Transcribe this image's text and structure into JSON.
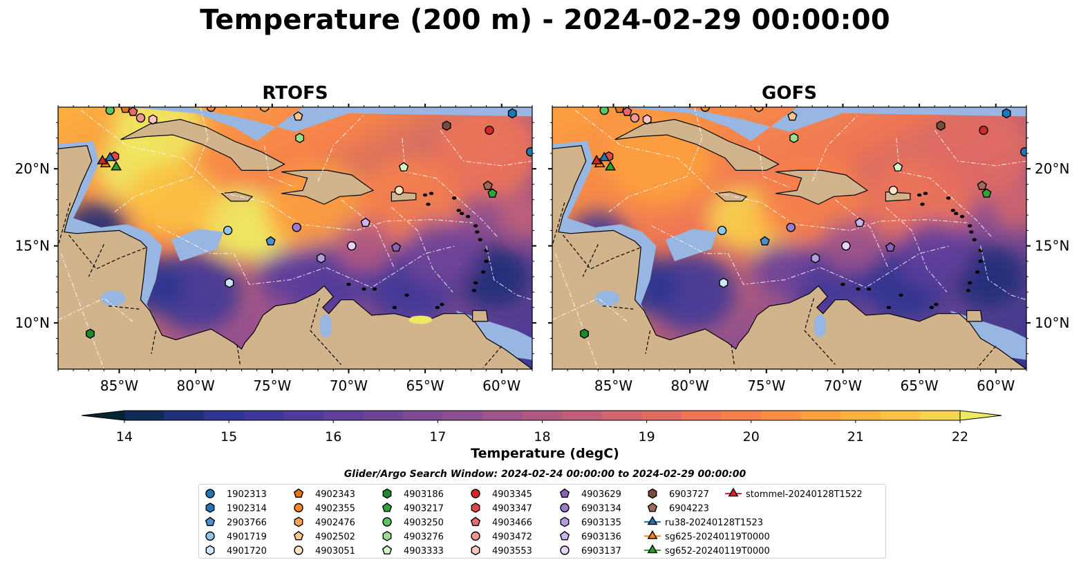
{
  "title": "Temperature (200 m) - 2024-02-29 00:00:00",
  "panels": [
    {
      "name": "RTOFS"
    },
    {
      "name": "GOFS"
    }
  ],
  "axes": {
    "lon_ticks": [
      "85°W",
      "80°W",
      "75°W",
      "70°W",
      "65°W",
      "60°W"
    ],
    "lat_ticks": [
      "10°N",
      "15°N",
      "20°N"
    ],
    "lon_range": [
      -89,
      -58
    ],
    "lat_range": [
      7,
      24
    ]
  },
  "colorbar": {
    "label": "Temperature (degC)",
    "ticks": [
      "14",
      "15",
      "16",
      "17",
      "18",
      "19",
      "20",
      "21",
      "22"
    ],
    "range": [
      14,
      22
    ],
    "colors": [
      "#042333",
      "#0f2b55",
      "#1f2f78",
      "#2e3490",
      "#3e3798",
      "#4e3b9b",
      "#5e3f9b",
      "#6e4499",
      "#7e4a96",
      "#8e4f92",
      "#9f548b",
      "#b05a82",
      "#c15f79",
      "#d2656e",
      "#e16c62",
      "#ee7556",
      "#f6814b",
      "#fb9043",
      "#fda03e",
      "#fdb13e",
      "#fbc244",
      "#f6d552",
      "#efe862"
    ]
  },
  "search_window": "Glider/Argo Search Window: 2024-02-24 00:00:00 to 2024-02-29 00:00:00",
  "legend": [
    {
      "label": "1902313",
      "marker": "circle",
      "color": "#1f77b4"
    },
    {
      "label": "1902314",
      "marker": "hexagon",
      "color": "#1f77b4"
    },
    {
      "label": "2903766",
      "marker": "pentagon",
      "color": "#4c8fcf"
    },
    {
      "label": "4901719",
      "marker": "circle",
      "color": "#8fc6ea"
    },
    {
      "label": "4901720",
      "marker": "hexagon",
      "color": "#cde7f7"
    },
    {
      "label": "4902343",
      "marker": "pentagon",
      "color": "#e6750d"
    },
    {
      "label": "4902355",
      "marker": "circle",
      "color": "#f5892a"
    },
    {
      "label": "4902476",
      "marker": "hexagon",
      "color": "#fba352"
    },
    {
      "label": "4902502",
      "marker": "pentagon",
      "color": "#fdc58b"
    },
    {
      "label": "4903051",
      "marker": "circle",
      "color": "#fde2c4"
    },
    {
      "label": "4903186",
      "marker": "hexagon",
      "color": "#1a8a2a"
    },
    {
      "label": "4903217",
      "marker": "pentagon",
      "color": "#2fa33c"
    },
    {
      "label": "4903250",
      "marker": "circle",
      "color": "#5cc65e"
    },
    {
      "label": "4903276",
      "marker": "hexagon",
      "color": "#98e08e"
    },
    {
      "label": "4903333",
      "marker": "pentagon",
      "color": "#d3f5c6"
    },
    {
      "label": "4903345",
      "marker": "circle",
      "color": "#d62728"
    },
    {
      "label": "4903347",
      "marker": "hexagon",
      "color": "#e0474a"
    },
    {
      "label": "4903466",
      "marker": "pentagon",
      "color": "#ea6a70"
    },
    {
      "label": "4903472",
      "marker": "circle",
      "color": "#f39794"
    },
    {
      "label": "4903553",
      "marker": "hexagon",
      "color": "#fbc3c1"
    },
    {
      "label": "4903629",
      "marker": "pentagon",
      "color": "#8c5fb8"
    },
    {
      "label": "6903134",
      "marker": "circle",
      "color": "#9c7bcc"
    },
    {
      "label": "6903135",
      "marker": "hexagon",
      "color": "#b59be0"
    },
    {
      "label": "6903136",
      "marker": "pentagon",
      "color": "#ccb5ef"
    },
    {
      "label": "6903137",
      "marker": "circle",
      "color": "#e5d3fa"
    },
    {
      "label": "6903727",
      "marker": "hexagon",
      "color": "#7b4b3a"
    },
    {
      "label": "6904223",
      "marker": "pentagon",
      "color": "#a06a5a"
    },
    {
      "label": "ru38-20240128T1523",
      "marker": "triangle-line",
      "color": "#1f77b4"
    },
    {
      "label": "sg625-20240119T0000",
      "marker": "triangle-line",
      "color": "#ff7f0e"
    },
    {
      "label": "sg652-20240119T0000",
      "marker": "triangle-line",
      "color": "#2ca02c"
    },
    {
      "label": "stommel-20240128T1522",
      "marker": "triangle-line",
      "color": "#d62728"
    }
  ],
  "chart_data": {
    "type": "heatmap",
    "title": "Temperature (200 m) - 2024-02-29 00:00:00",
    "variable": "Temperature (degC)",
    "depth_m": 200,
    "value_range": [
      14,
      22
    ],
    "xlim": [
      -89,
      -58
    ],
    "ylim": [
      7,
      24
    ],
    "markers": [
      {
        "label": "1902313",
        "lon": -58.1,
        "lat": 21.1
      },
      {
        "label": "1902314",
        "lon": -59.3,
        "lat": 23.6
      },
      {
        "label": "2903766",
        "lon": -75.1,
        "lat": 15.3
      },
      {
        "label": "4901719",
        "lon": -77.9,
        "lat": 16.0
      },
      {
        "label": "4901720",
        "lon": -77.8,
        "lat": 12.6
      },
      {
        "label": "4902343",
        "lon": -84.6,
        "lat": 23.9
      },
      {
        "label": "4902355",
        "lon": -79.0,
        "lat": 24.0
      },
      {
        "label": "4902476",
        "lon": -75.5,
        "lat": 24.0
      },
      {
        "label": "4902502",
        "lon": -73.3,
        "lat": 23.4
      },
      {
        "label": "4903051",
        "lon": -66.7,
        "lat": 18.6
      },
      {
        "label": "4903186",
        "lon": -86.9,
        "lat": 9.3
      },
      {
        "label": "4903217",
        "lon": -60.6,
        "lat": 18.4
      },
      {
        "label": "4903250",
        "lon": -85.6,
        "lat": 23.8
      },
      {
        "label": "4903276",
        "lon": -73.2,
        "lat": 22.0
      },
      {
        "label": "4903333",
        "lon": -66.4,
        "lat": 20.1
      },
      {
        "label": "4903345",
        "lon": -60.8,
        "lat": 22.5
      },
      {
        "label": "4903347",
        "lon": -85.3,
        "lat": 20.8
      },
      {
        "label": "4903466",
        "lon": -84.1,
        "lat": 23.7
      },
      {
        "label": "4903472",
        "lon": -83.6,
        "lat": 23.3
      },
      {
        "label": "4903553",
        "lon": -82.8,
        "lat": 23.2
      },
      {
        "label": "4903629",
        "lon": -66.9,
        "lat": 14.9
      },
      {
        "label": "6903134",
        "lon": -73.4,
        "lat": 16.2
      },
      {
        "label": "6903135",
        "lon": -71.8,
        "lat": 14.2
      },
      {
        "label": "6903136",
        "lon": -68.9,
        "lat": 16.5
      },
      {
        "label": "6903137",
        "lon": -69.8,
        "lat": 15.0
      },
      {
        "label": "6903727",
        "lon": -63.6,
        "lat": 22.8
      },
      {
        "label": "6904223",
        "lon": -60.9,
        "lat": 18.9
      },
      {
        "label": "ru38-20240128T1523",
        "lon": -85.6,
        "lat": 20.7
      },
      {
        "label": "sg625-20240119T0000",
        "lon": -85.9,
        "lat": 20.3
      },
      {
        "label": "sg652-20240119T0000",
        "lon": -85.2,
        "lat": 20.1
      },
      {
        "label": "stommel-20240128T1522",
        "lon": -86.1,
        "lat": 20.5
      }
    ]
  }
}
